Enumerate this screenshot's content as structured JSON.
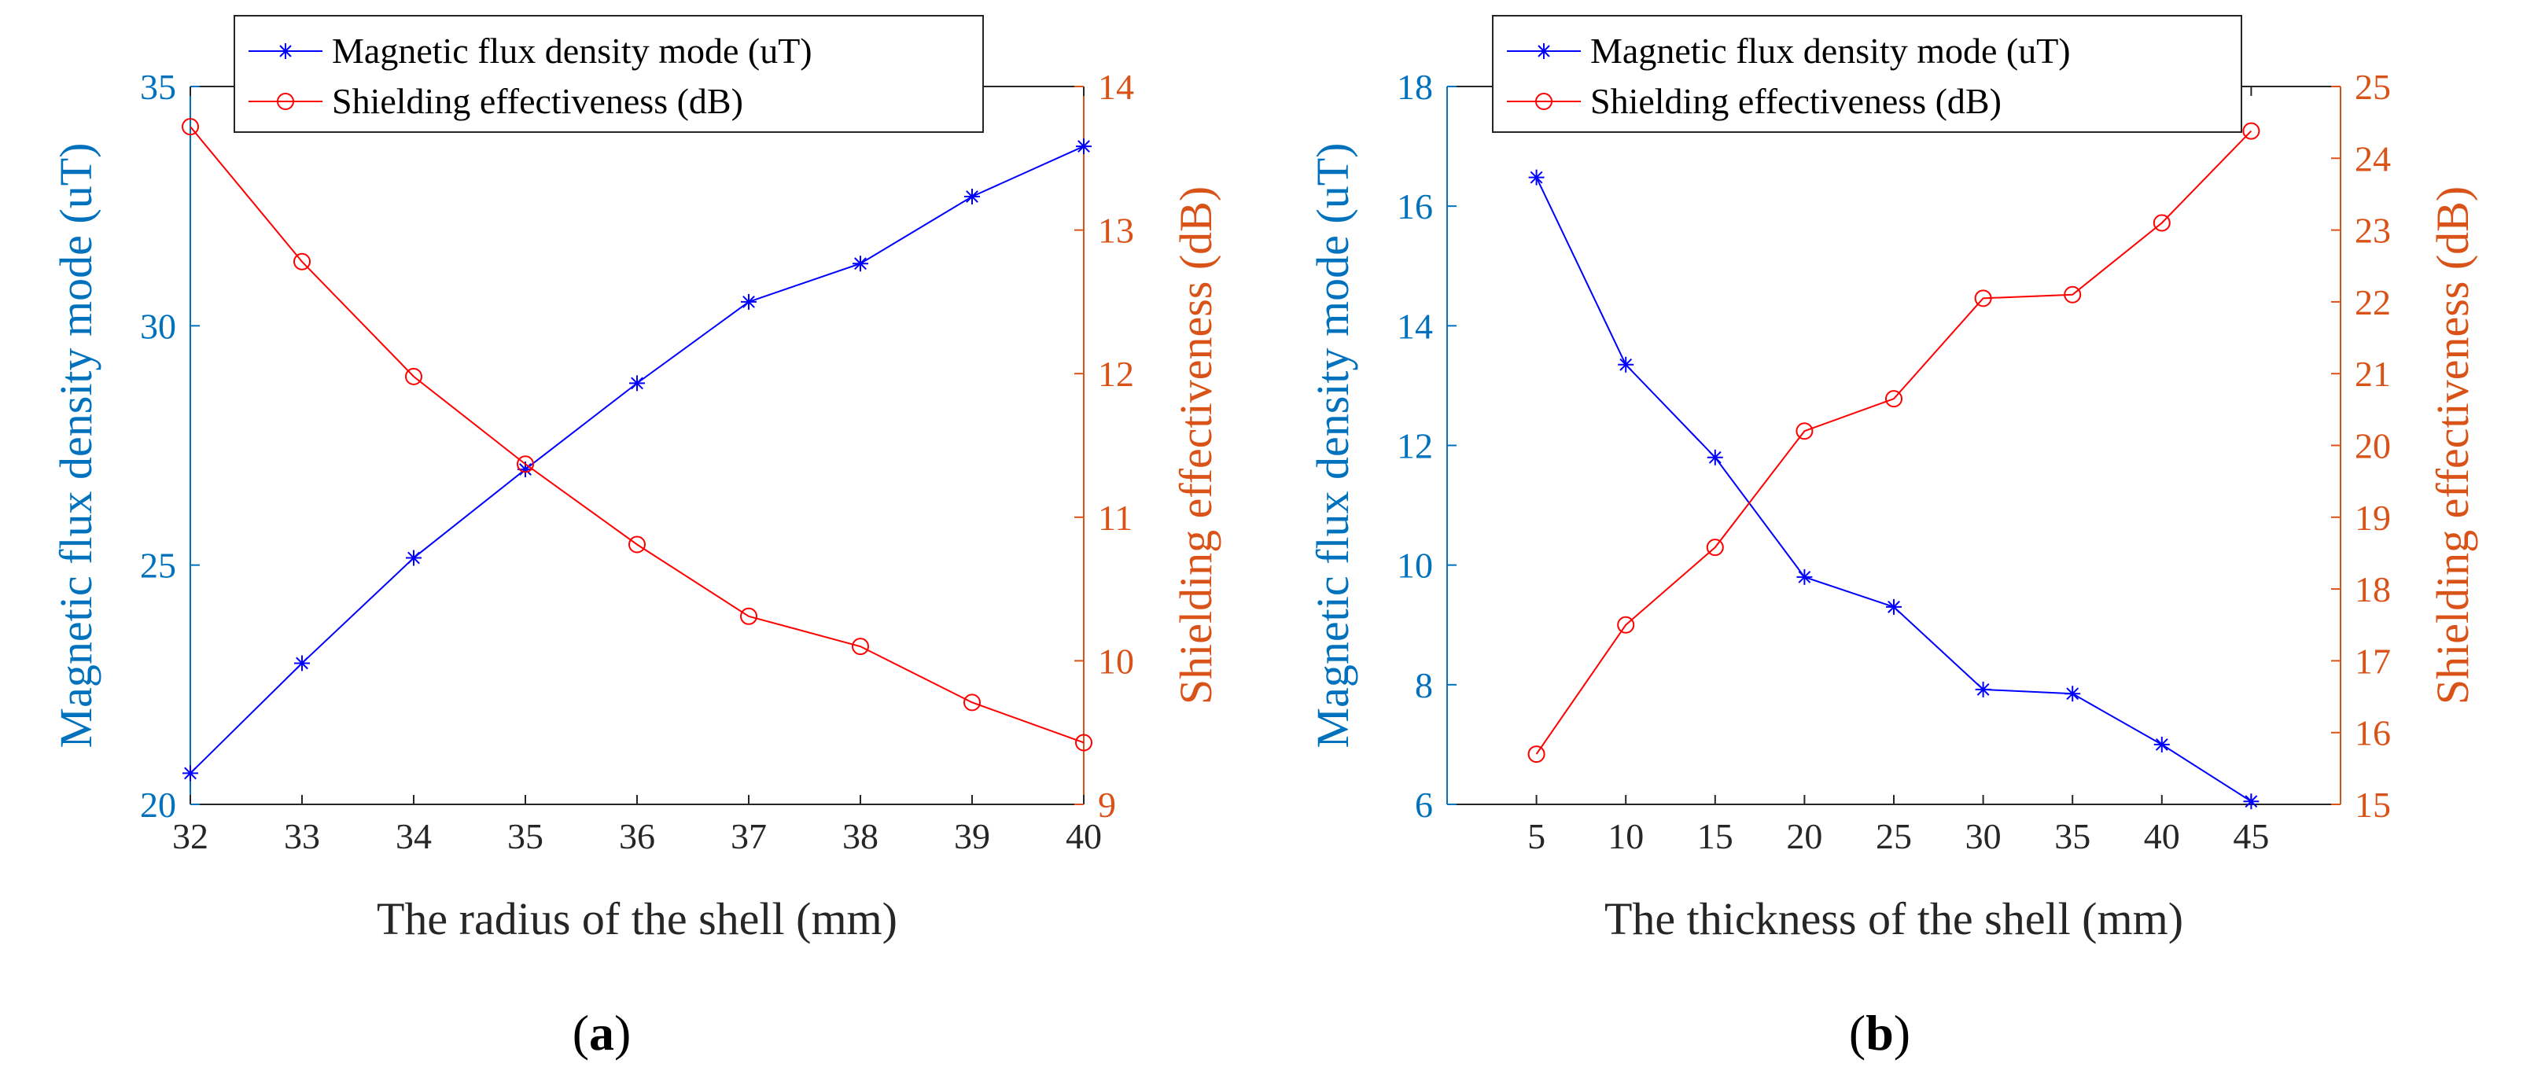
{
  "colors": {
    "left_axis": "#0072BD",
    "right_axis": "#D95319",
    "series_blue": "#0000FF",
    "series_red": "#FF0000",
    "axis_black": "#262626"
  },
  "chart_data": [
    {
      "type": "line",
      "panel_label": "a",
      "title": "",
      "xlabel": "The radius of the shell (mm)",
      "ylabel_left": "Magnetic flux density mode (uT)",
      "ylabel_right": "Shielding effectiveness (dB)",
      "x": [
        32,
        33,
        34,
        35,
        36,
        37,
        38,
        39,
        40
      ],
      "xlim": [
        32,
        40
      ],
      "xticks": [
        32,
        33,
        34,
        35,
        36,
        37,
        38,
        39,
        40
      ],
      "ylim_left": [
        20,
        35
      ],
      "yticks_left": [
        20,
        25,
        30,
        35
      ],
      "ylim_right": [
        9,
        14
      ],
      "yticks_right": [
        9,
        10,
        11,
        12,
        13,
        14
      ],
      "legend_position": "top",
      "series": [
        {
          "name": "Magnetic flux density mode (uT)",
          "axis": "left",
          "marker": "asterisk",
          "color": "#0000FF",
          "values": [
            20.65,
            22.95,
            25.15,
            27.0,
            28.8,
            30.5,
            31.3,
            32.7,
            33.75
          ]
        },
        {
          "name": "Shielding effectiveness (dB)",
          "axis": "right",
          "marker": "circle",
          "color": "#FF0000",
          "values": [
            13.72,
            12.78,
            11.98,
            11.37,
            10.81,
            10.31,
            10.1,
            9.71,
            9.43
          ]
        }
      ]
    },
    {
      "type": "line",
      "panel_label": "b",
      "title": "",
      "xlabel": "The thickness of the shell (mm)",
      "ylabel_left": "Magnetic flux density mode (uT)",
      "ylabel_right": "Shielding effectiveness (dB)",
      "x": [
        5,
        10,
        15,
        20,
        25,
        30,
        35,
        40,
        45
      ],
      "xlim": [
        0,
        50
      ],
      "xticks": [
        5,
        10,
        15,
        20,
        25,
        30,
        35,
        40,
        45
      ],
      "ylim_left": [
        6,
        18
      ],
      "yticks_left": [
        6,
        8,
        10,
        12,
        14,
        16,
        18
      ],
      "ylim_right": [
        15,
        25
      ],
      "yticks_right": [
        15,
        16,
        17,
        18,
        19,
        20,
        21,
        22,
        23,
        24,
        25
      ],
      "legend_position": "top",
      "series": [
        {
          "name": "Magnetic flux density mode (uT)",
          "axis": "left",
          "marker": "asterisk",
          "color": "#0000FF",
          "values": [
            16.48,
            13.35,
            11.8,
            9.8,
            9.3,
            7.92,
            7.85,
            7.0,
            6.05
          ]
        },
        {
          "name": "Shielding effectiveness (dB)",
          "axis": "right",
          "marker": "circle",
          "color": "#FF0000",
          "values": [
            15.7,
            17.5,
            18.58,
            20.2,
            20.65,
            22.05,
            22.1,
            23.1,
            24.38
          ]
        }
      ]
    }
  ]
}
